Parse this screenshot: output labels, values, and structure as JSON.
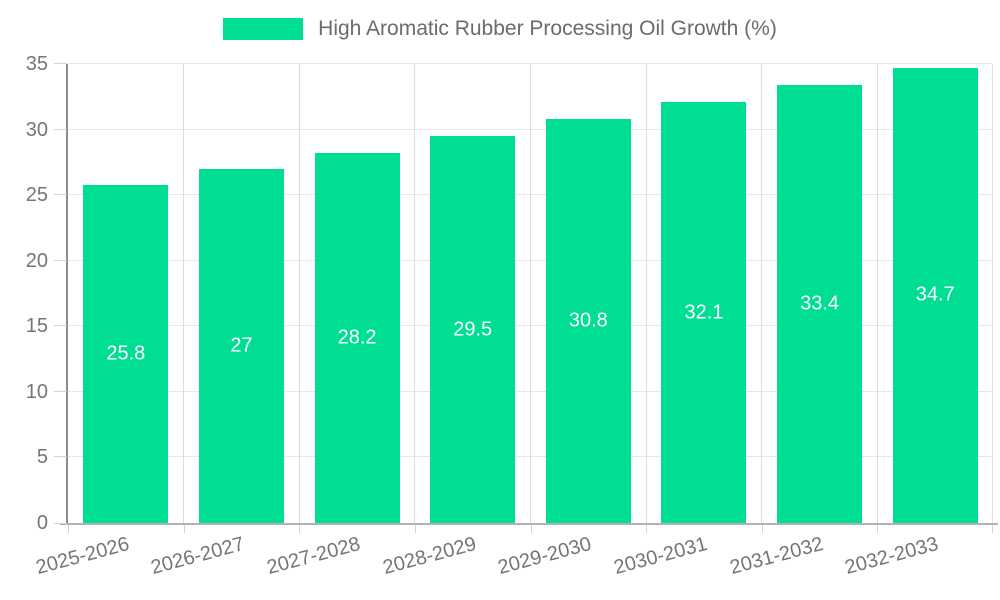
{
  "chart_data": {
    "type": "bar",
    "title": "High Aromatic Rubber Processing Oil Growth (%)",
    "xlabel": "",
    "ylabel": "",
    "categories": [
      "2025-2026",
      "2026-2027",
      "2027-2028",
      "2028-2029",
      "2029-2030",
      "2030-2031",
      "2031-2032",
      "2032-2033"
    ],
    "values": [
      25.8,
      27,
      28.2,
      29.5,
      30.8,
      32.1,
      33.4,
      34.7
    ],
    "value_labels": [
      "25.8",
      "27",
      "28.2",
      "29.5",
      "30.8",
      "32.1",
      "33.4",
      "34.7"
    ],
    "ylim": [
      0,
      35
    ],
    "yticks": [
      0,
      5,
      10,
      15,
      20,
      25,
      30,
      35
    ],
    "grid": true,
    "legend_position": "top-center",
    "value_label_position": "inside-center"
  },
  "colors": {
    "bar": "#00DE94",
    "value_label": "#ffffff",
    "axis_text": "#757575",
    "legend_text": "#6b6b6b",
    "hgrid": "#e7e7e7",
    "vgrid": "#dcdcdc",
    "y_axis_line": "#8c8c8c",
    "x_axis_line": "#b2b2b2",
    "tick_mark": "#d4d4d4"
  }
}
